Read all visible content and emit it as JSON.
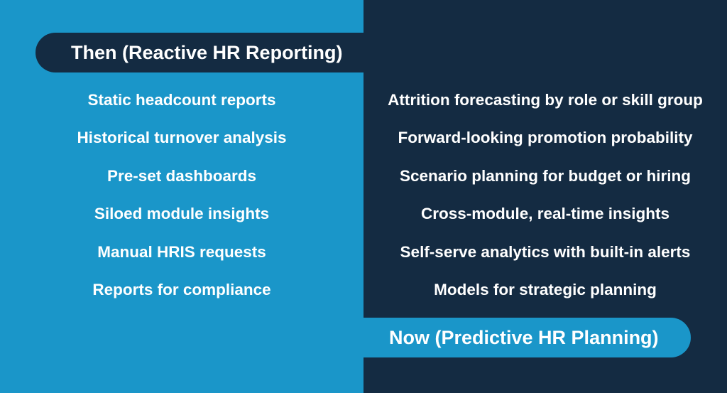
{
  "then": {
    "title": "Then (Reactive HR Reporting)",
    "items": [
      "Static headcount reports",
      "Historical turnover analysis",
      "Pre-set dashboards",
      "Siloed module insights",
      "Manual HRIS requests",
      "Reports for compliance"
    ]
  },
  "now": {
    "title": "Now (Predictive HR Planning)",
    "items": [
      "Attrition forecasting by role or skill group",
      "Forward-looking promotion probability",
      "Scenario planning for budget or hiring",
      "Cross-module, real-time insights",
      "Self-serve analytics with built-in alerts",
      "Models for strategic planning"
    ]
  },
  "colors": {
    "left_panel": "#1a96c9",
    "right_panel": "#142b42",
    "text": "#ffffff"
  }
}
